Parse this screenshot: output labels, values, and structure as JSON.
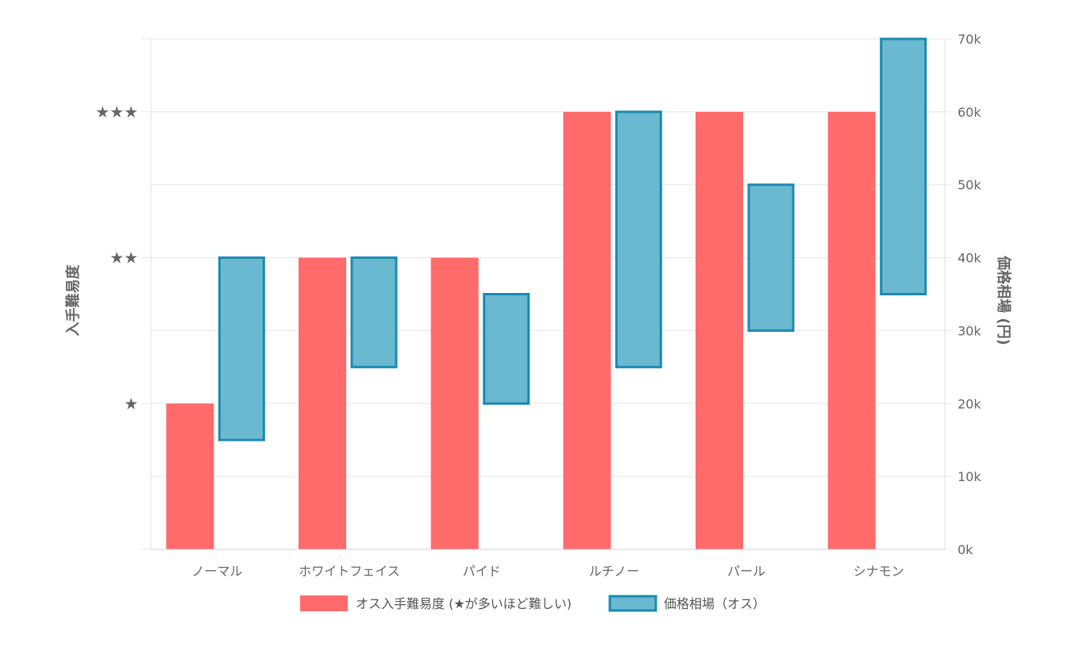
{
  "chart_data": {
    "type": "bar",
    "categories": [
      "ノーマル",
      "ホワイトフェイス",
      "パイド",
      "ルチノー",
      "パール",
      "シナモン"
    ],
    "series": [
      {
        "name": "オス入手難易度 (★が多いほど難しい)",
        "axis": "left",
        "values": [
          1,
          2,
          2,
          3,
          3,
          3
        ],
        "color": "#ff6b6b"
      },
      {
        "name": "価格相場（オス）",
        "axis": "right",
        "ranges": [
          [
            15000,
            40000
          ],
          [
            25000,
            40000
          ],
          [
            20000,
            35000
          ],
          [
            25000,
            60000
          ],
          [
            30000,
            50000
          ],
          [
            35000,
            70000
          ]
        ],
        "color": "#6bb8d1",
        "border_color": "#1a8ab0"
      }
    ],
    "y_left": {
      "label": "入手難易度",
      "range": [
        0,
        3.5
      ],
      "ticks": [
        {
          "value": 1,
          "label": "★"
        },
        {
          "value": 2,
          "label": "★★"
        },
        {
          "value": 3,
          "label": "★★★"
        }
      ]
    },
    "y_right": {
      "label": "価格相場 (円)",
      "range": [
        0,
        70000
      ],
      "ticks": [
        {
          "value": 0,
          "label": "0k"
        },
        {
          "value": 10000,
          "label": "10k"
        },
        {
          "value": 20000,
          "label": "20k"
        },
        {
          "value": 30000,
          "label": "30k"
        },
        {
          "value": 40000,
          "label": "40k"
        },
        {
          "value": 50000,
          "label": "50k"
        },
        {
          "value": 60000,
          "label": "60k"
        },
        {
          "value": 70000,
          "label": "70k"
        }
      ]
    },
    "legend_position": "bottom",
    "grid": true
  }
}
